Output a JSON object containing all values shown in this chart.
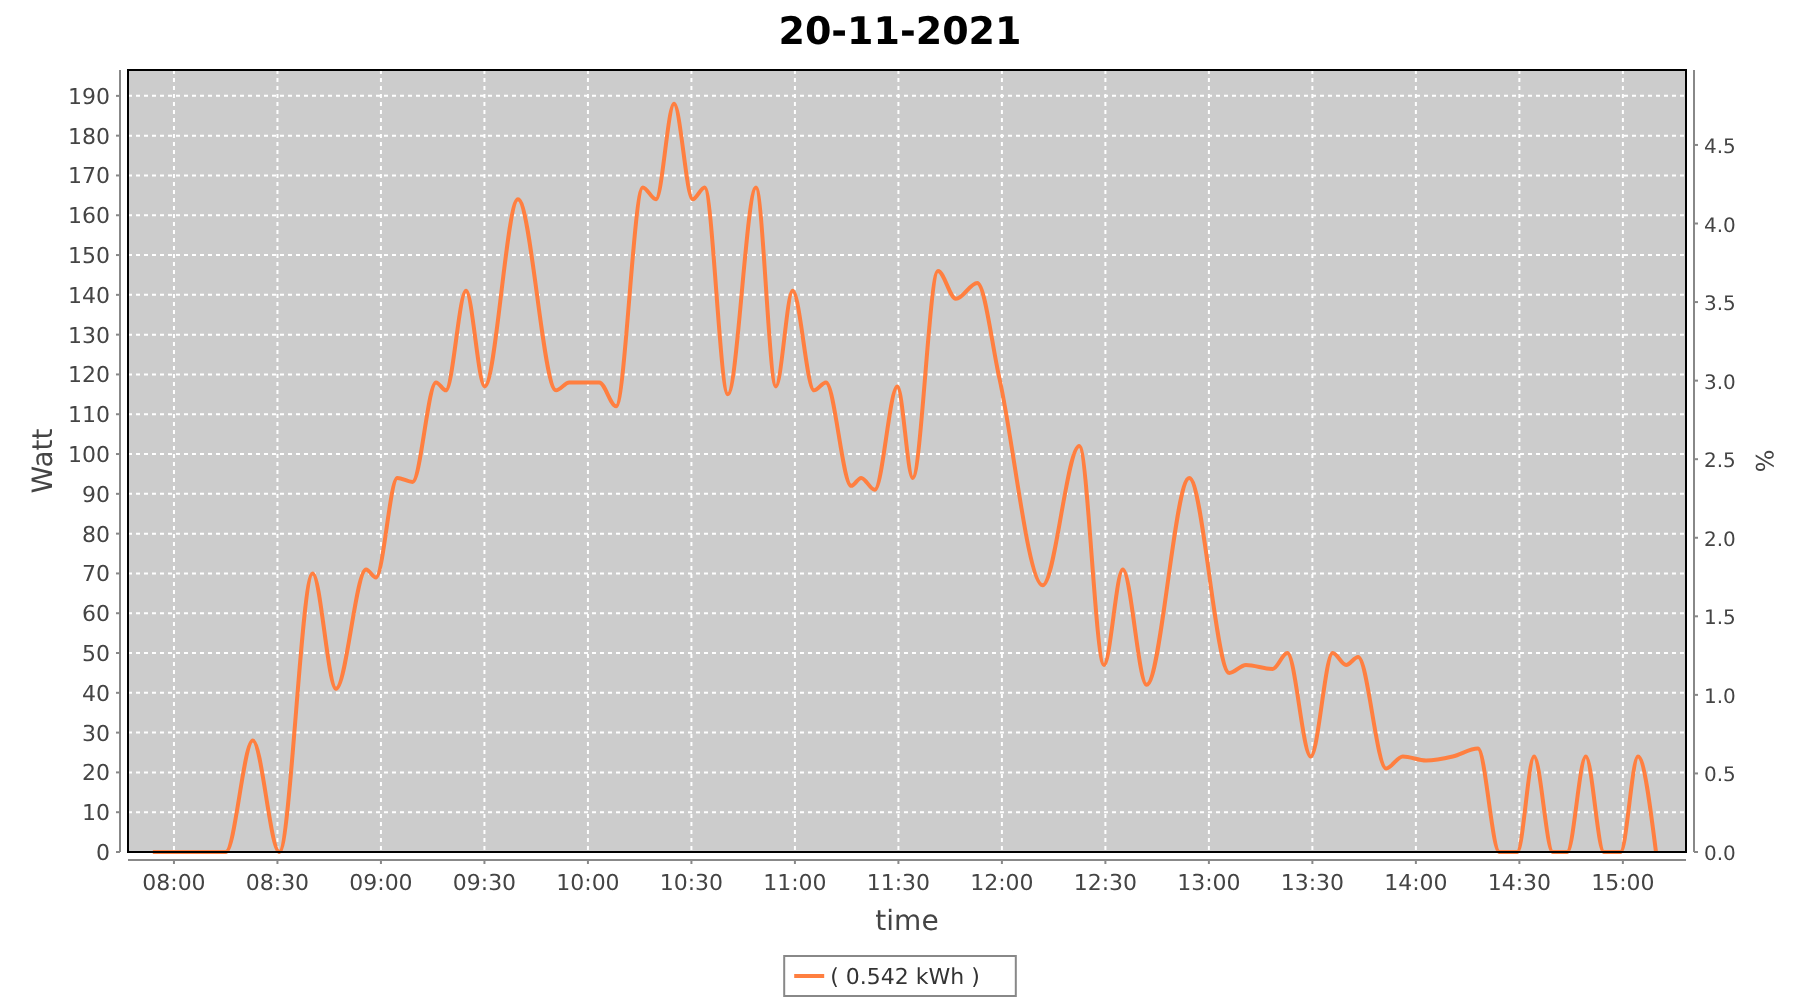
{
  "chart_data": {
    "type": "line",
    "title": "20-11-2021",
    "xlabel": "time",
    "ylabel": "Watt",
    "y2label": "%",
    "x": [
      7.898,
      8.171,
      8.251,
      8.381,
      8.509,
      8.67,
      8.783,
      8.928,
      8.976,
      9.079,
      9.153,
      9.266,
      9.314,
      9.411,
      9.501,
      9.662,
      9.846,
      9.91,
      10.055,
      10.136,
      10.265,
      10.329,
      10.416,
      10.506,
      10.564,
      10.676,
      10.812,
      10.908,
      10.989,
      11.092,
      11.15,
      11.272,
      11.32,
      11.386,
      11.495,
      11.569,
      11.691,
      11.778,
      11.881,
      11.988,
      12.197,
      12.374,
      12.493,
      12.584,
      12.699,
      12.905,
      13.099,
      13.179,
      13.308,
      13.379,
      13.492,
      13.598,
      13.663,
      13.721,
      13.856,
      13.937,
      14.049,
      14.178,
      14.3,
      14.403,
      14.49,
      14.571,
      14.661,
      14.731,
      14.821,
      14.908,
      14.989,
      15.073,
      15.16
    ],
    "series": [
      {
        "name": "( 0.542 kWh )",
        "color": "#ff7f40",
        "values": [
          0,
          0,
          0,
          28,
          0,
          70,
          41,
          71,
          69,
          94,
          93,
          118,
          116,
          141,
          117,
          164,
          116,
          118,
          118,
          112,
          167,
          164,
          188,
          164,
          167,
          115,
          167,
          117,
          141,
          116,
          118,
          92,
          94,
          91,
          117,
          94,
          146,
          139,
          143,
          119,
          67,
          102,
          47,
          71,
          42,
          94,
          45,
          47,
          46,
          50,
          24,
          50,
          47,
          49,
          21,
          24,
          23,
          24,
          26,
          0,
          0,
          24,
          0,
          0,
          24,
          0,
          0,
          24,
          0
        ]
      }
    ],
    "xlim": [
      7.778,
      15.305
    ],
    "xticks": [
      {
        "value": 8,
        "label": "08:00"
      },
      {
        "value": 8.5,
        "label": "08:30"
      },
      {
        "value": 9,
        "label": "09:00"
      },
      {
        "value": 9.5,
        "label": "09:30"
      },
      {
        "value": 10,
        "label": "10:00"
      },
      {
        "value": 10.5,
        "label": "10:30"
      },
      {
        "value": 11,
        "label": "11:00"
      },
      {
        "value": 11.5,
        "label": "11:30"
      },
      {
        "value": 12,
        "label": "12:00"
      },
      {
        "value": 12.5,
        "label": "12:30"
      },
      {
        "value": 13,
        "label": "13:00"
      },
      {
        "value": 13.5,
        "label": "13:30"
      },
      {
        "value": 14,
        "label": "14:00"
      },
      {
        "value": 14.5,
        "label": "14:30"
      },
      {
        "value": 15,
        "label": "15:00"
      }
    ],
    "ylim": [
      0,
      196.5
    ],
    "yticks": [
      0,
      10,
      20,
      30,
      40,
      50,
      60,
      70,
      80,
      90,
      100,
      110,
      120,
      130,
      140,
      150,
      160,
      170,
      180,
      190
    ],
    "y2lim": [
      0,
      4.977
    ],
    "y2ticks": [
      {
        "value": 0,
        "label": "0.0"
      },
      {
        "value": 0.5,
        "label": "0.5"
      },
      {
        "value": 1,
        "label": "1.0"
      },
      {
        "value": 1.5,
        "label": "1.5"
      },
      {
        "value": 2,
        "label": "2.0"
      },
      {
        "value": 2.5,
        "label": "2.5"
      },
      {
        "value": 3,
        "label": "3.0"
      },
      {
        "value": 3.5,
        "label": "3.5"
      },
      {
        "value": 4,
        "label": "4.0"
      },
      {
        "value": 4.5,
        "label": "4.5"
      }
    ],
    "grid": true,
    "legend": "bottom",
    "marker": "none",
    "line_style": "solid"
  }
}
